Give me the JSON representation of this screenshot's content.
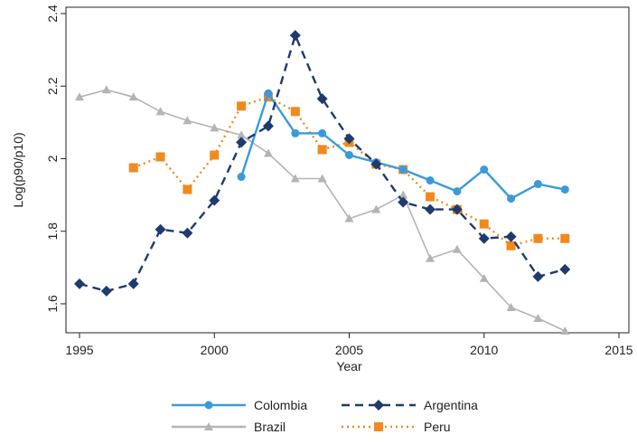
{
  "chart_data": {
    "type": "line",
    "xlabel": "Year",
    "ylabel": "Log(p90/p10)",
    "xlim": [
      1995,
      2015
    ],
    "ylim": [
      1.52,
      2.4
    ],
    "xticks": [
      "1995",
      "2000",
      "2005",
      "2010",
      "2015"
    ],
    "yticks": [
      "1.6",
      "1.8",
      "2",
      "2.2",
      "2.4"
    ],
    "grid": false,
    "legend_position": "bottom",
    "series": [
      {
        "name": "Colombia",
        "color": "#3a9ad9",
        "line_style": "solid",
        "marker": "circle",
        "points": [
          [
            2001,
            1.95
          ],
          [
            2002,
            2.18
          ],
          [
            2003,
            2.07
          ],
          [
            2004,
            2.07
          ],
          [
            2005,
            2.01
          ],
          [
            2006,
            1.99
          ],
          [
            2007,
            1.97
          ],
          [
            2008,
            1.94
          ],
          [
            2009,
            1.91
          ],
          [
            2010,
            1.97
          ],
          [
            2011,
            1.89
          ],
          [
            2012,
            1.93
          ],
          [
            2013,
            1.915
          ]
        ]
      },
      {
        "name": "Argentina",
        "color": "#1f3b6e",
        "line_style": "dashed",
        "marker": "diamond",
        "points": [
          [
            1995,
            1.655
          ],
          [
            1996,
            1.635
          ],
          [
            1997,
            1.655
          ],
          [
            1998,
            1.805
          ],
          [
            1999,
            1.795
          ],
          [
            2000,
            1.885
          ],
          [
            2001,
            2.045
          ],
          [
            2002,
            2.09
          ],
          [
            2003,
            2.34
          ],
          [
            2004,
            2.165
          ],
          [
            2005,
            2.055
          ],
          [
            2006,
            1.985
          ],
          [
            2007,
            1.88
          ],
          [
            2008,
            1.86
          ],
          [
            2009,
            1.86
          ],
          [
            2010,
            1.78
          ],
          [
            2011,
            1.785
          ],
          [
            2012,
            1.675
          ],
          [
            2013,
            1.695
          ]
        ]
      },
      {
        "name": "Brazil",
        "color": "#b4b4b4",
        "line_style": "solid",
        "marker": "triangle",
        "points": [
          [
            1995,
            2.17
          ],
          [
            1996,
            2.19
          ],
          [
            1997,
            2.17
          ],
          [
            1998,
            2.13
          ],
          [
            1999,
            2.105
          ],
          [
            2000,
            2.085
          ],
          [
            2001,
            2.065
          ],
          [
            2002,
            2.015
          ],
          [
            2003,
            1.945
          ],
          [
            2004,
            1.945
          ],
          [
            2005,
            1.835
          ],
          [
            2006,
            1.86
          ],
          [
            2007,
            1.9
          ],
          [
            2008,
            1.725
          ],
          [
            2009,
            1.75
          ],
          [
            2010,
            1.67
          ],
          [
            2011,
            1.59
          ],
          [
            2012,
            1.56
          ],
          [
            2013,
            1.525
          ]
        ]
      },
      {
        "name": "Peru",
        "color": "#f08a1e",
        "line_style": "dotted",
        "marker": "square",
        "points": [
          [
            1997,
            1.975
          ],
          [
            1998,
            2.005
          ],
          [
            1999,
            1.915
          ],
          [
            2000,
            2.01
          ],
          [
            2001,
            2.145
          ],
          [
            2002,
            2.17
          ],
          [
            2003,
            2.13
          ],
          [
            2004,
            2.025
          ],
          [
            2005,
            2.045
          ],
          [
            2006,
            1.985
          ],
          [
            2007,
            1.97
          ],
          [
            2008,
            1.895
          ],
          [
            2009,
            1.86
          ],
          [
            2010,
            1.82
          ],
          [
            2011,
            1.76
          ],
          [
            2012,
            1.78
          ],
          [
            2013,
            1.78
          ]
        ]
      }
    ]
  }
}
